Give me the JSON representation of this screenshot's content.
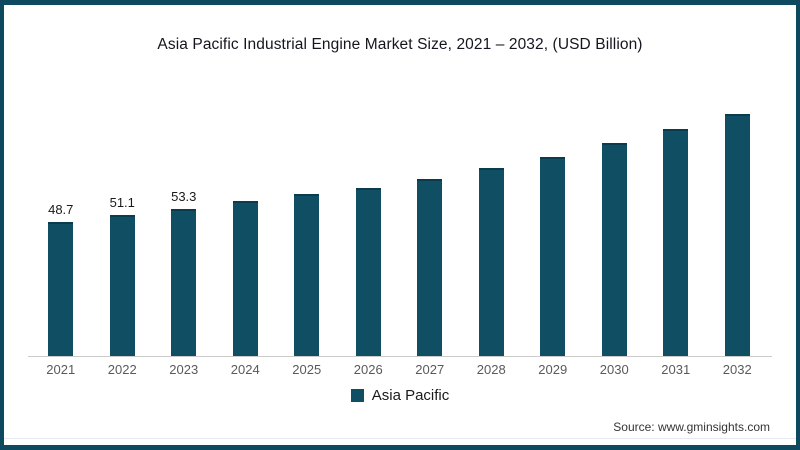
{
  "page": {
    "frame_color": "#0d4a5f",
    "background": "#ffffff"
  },
  "chart_data": {
    "type": "bar",
    "title": "Asia Pacific Industrial Engine Market Size, 2021 – 2032, (USD Billion)",
    "categories": [
      "2021",
      "2022",
      "2023",
      "2024",
      "2025",
      "2026",
      "2027",
      "2028",
      "2029",
      "2030",
      "2031",
      "2032"
    ],
    "series": [
      {
        "name": "Asia Pacific",
        "values": [
          48.7,
          51.1,
          53.3,
          56.2,
          58.9,
          61.2,
          64.4,
          68.4,
          72.4,
          77.5,
          82.5,
          88.0
        ]
      }
    ],
    "data_labels": [
      "48.7",
      "51.1",
      "53.3",
      null,
      null,
      null,
      null,
      null,
      null,
      null,
      null,
      null
    ],
    "xlabel": "",
    "ylabel": "",
    "ylim": [
      0,
      93
    ],
    "grid": false,
    "bar_color": "#0f4e63",
    "axis_line_color": "#cbcbcb",
    "legend": {
      "label": "Asia Pacific",
      "position": "bottom-center",
      "marker_color": "#0f4e63"
    }
  },
  "source": {
    "text": "Source: www.gminsights.com"
  }
}
